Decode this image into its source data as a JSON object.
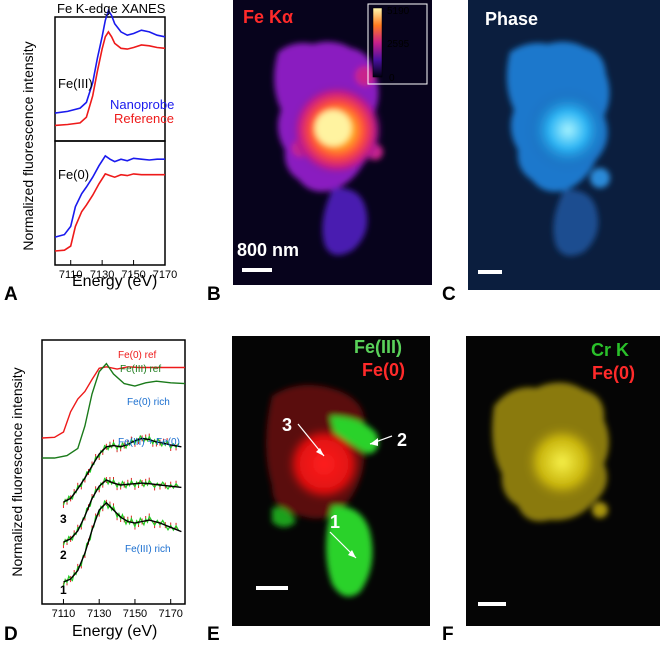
{
  "panels": {
    "a": {
      "letter": "A",
      "title": "Fe K-edge XANES",
      "ylabel": "Normalized fluorescence intensity",
      "xlabel": "Energy (eV)",
      "label_fe3": "Fe(III)",
      "label_fe0": "Fe(0)",
      "legend_nano": "Nanoprobe",
      "legend_ref": "Reference"
    },
    "b": {
      "letter": "B",
      "title": "Fe Kα",
      "scale_text": "800 nm",
      "colorbar_max": "5190",
      "colorbar_mid": "2595",
      "colorbar_min": "0"
    },
    "c": {
      "letter": "C",
      "title": "Phase"
    },
    "d": {
      "letter": "D",
      "ylabel": "Normalized fluorescence intensity",
      "xlabel": "Energy (eV)",
      "lbl_fe0_ref": "Fe(0) ref",
      "lbl_fe3_ref": "Fe(III) ref",
      "lbl_fe0_rich": "Fe(0) rich",
      "lbl_mix": "Fe(III) + Fe(0)",
      "lbl_fe3_rich": "Fe(III) rich",
      "spot1": "1",
      "spot2": "2",
      "spot3": "3"
    },
    "e": {
      "letter": "E",
      "title_green": "Fe(III)",
      "title_red": "Fe(0)",
      "spot1": "1",
      "spot2": "2",
      "spot3": "3"
    },
    "f": {
      "letter": "F",
      "title_green": "Cr K",
      "title_red": "Fe(0)"
    }
  },
  "colors": {
    "nanoprobe": "#1a1aee",
    "reference": "#ee1a1a",
    "fe3_ref": "#1a7a1a",
    "fit": "#000000",
    "data": "#22cc22",
    "err": "#dd2222",
    "label_blue": "#1a6ecf"
  },
  "chart_data": [
    {
      "type": "line",
      "panel": "A",
      "title": "Fe K-edge XANES",
      "xlabel": "Energy (eV)",
      "ylabel": "Normalized fluorescence intensity",
      "xlim": [
        7100,
        7170
      ],
      "xticks": [
        7110,
        7130,
        7150,
        7170
      ],
      "subplots": [
        {
          "name": "Fe(III)",
          "series": [
            {
              "name": "Nanoprobe",
              "x": [
                7100,
                7108,
                7116,
                7120,
                7124,
                7127,
                7130,
                7132,
                7134,
                7136,
                7138,
                7142,
                7146,
                7150,
                7155,
                7160,
                7165,
                7170
              ],
              "y": [
                0.05,
                0.07,
                0.11,
                0.18,
                0.42,
                0.72,
                0.98,
                1.18,
                1.3,
                1.24,
                1.14,
                1.04,
                1.0,
                1.02,
                1.06,
                1.04,
                1.0,
                0.98
              ]
            },
            {
              "name": "Reference",
              "x": [
                7100,
                7108,
                7116,
                7120,
                7124,
                7127,
                7130,
                7132,
                7134,
                7136,
                7138,
                7142,
                7146,
                7150,
                7155,
                7160,
                7165,
                7170
              ],
              "y": [
                0.02,
                0.03,
                0.05,
                0.12,
                0.38,
                0.68,
                0.95,
                1.1,
                1.16,
                1.1,
                1.02,
                0.96,
                0.95,
                0.97,
                1.0,
                0.99,
                0.97,
                0.96
              ]
            }
          ]
        },
        {
          "name": "Fe(0)",
          "series": [
            {
              "name": "Nanoprobe",
              "x": [
                7100,
                7106,
                7110,
                7113,
                7117,
                7120,
                7124,
                7128,
                7132,
                7135,
                7138,
                7142,
                7146,
                7150,
                7155,
                7160,
                7165,
                7170
              ],
              "y": [
                0.05,
                0.08,
                0.18,
                0.42,
                0.58,
                0.66,
                0.78,
                0.92,
                1.04,
                1.0,
                0.97,
                1.0,
                0.98,
                1.01,
                1.0,
                0.99,
                1.0,
                1.0
              ]
            },
            {
              "name": "Reference",
              "x": [
                7100,
                7106,
                7110,
                7113,
                7117,
                7120,
                7124,
                7128,
                7132,
                7135,
                7138,
                7142,
                7146,
                7150,
                7155,
                7160,
                7165,
                7170
              ],
              "y": [
                0.0,
                0.01,
                0.06,
                0.3,
                0.48,
                0.56,
                0.68,
                0.82,
                0.94,
                0.92,
                0.9,
                0.93,
                0.92,
                0.94,
                0.93,
                0.93,
                0.93,
                0.93
              ]
            }
          ]
        }
      ]
    },
    {
      "type": "line",
      "panel": "D",
      "xlabel": "Energy (eV)",
      "ylabel": "Normalized fluorescence intensity",
      "xlim": [
        7098,
        7178
      ],
      "xticks": [
        7110,
        7130,
        7150,
        7170
      ],
      "series": [
        {
          "name": "Fe(0) ref",
          "x": [
            7098,
            7105,
            7110,
            7114,
            7118,
            7122,
            7126,
            7130,
            7134,
            7140,
            7146,
            7152,
            7158,
            7164,
            7170,
            7178
          ],
          "y": [
            0.0,
            0.01,
            0.08,
            0.35,
            0.52,
            0.62,
            0.78,
            0.93,
            0.95,
            0.92,
            0.95,
            0.94,
            0.94,
            0.94,
            0.94,
            0.94
          ]
        },
        {
          "name": "Fe(III) ref",
          "x": [
            7098,
            7105,
            7112,
            7118,
            7122,
            7126,
            7130,
            7134,
            7138,
            7144,
            7150,
            7156,
            7162,
            7170,
            7178
          ],
          "y": [
            0.0,
            0.0,
            0.03,
            0.12,
            0.4,
            0.8,
            1.08,
            1.18,
            1.05,
            0.93,
            0.9,
            0.94,
            0.96,
            0.94,
            0.93
          ]
        },
        {
          "name": "Fe(0) rich",
          "x": [
            7110,
            7114,
            7118,
            7122,
            7126,
            7130,
            7134,
            7138,
            7142,
            7146,
            7150,
            7154,
            7158,
            7162,
            7166,
            7170,
            7176
          ],
          "y": [
            0.0,
            0.06,
            0.22,
            0.4,
            0.6,
            0.8,
            0.92,
            0.94,
            0.92,
            0.96,
            1.02,
            1.06,
            1.04,
            1.0,
            0.98,
            0.95,
            0.92
          ]
        },
        {
          "name": "Fe(III) + Fe(0)",
          "x": [
            7110,
            7114,
            7118,
            7122,
            7126,
            7130,
            7134,
            7138,
            7142,
            7146,
            7150,
            7154,
            7158,
            7164,
            7170,
            7176
          ],
          "y": [
            0.0,
            0.05,
            0.18,
            0.42,
            0.7,
            0.9,
            1.0,
            0.95,
            0.92,
            0.93,
            0.94,
            0.95,
            0.94,
            0.92,
            0.9,
            0.88
          ]
        },
        {
          "name": "Fe(III) rich",
          "x": [
            7110,
            7114,
            7118,
            7122,
            7126,
            7130,
            7134,
            7138,
            7142,
            7146,
            7150,
            7154,
            7158,
            7164,
            7170,
            7176
          ],
          "y": [
            0.0,
            0.04,
            0.16,
            0.4,
            0.72,
            1.0,
            1.1,
            1.0,
            0.9,
            0.84,
            0.82,
            0.84,
            0.86,
            0.82,
            0.76,
            0.7
          ]
        }
      ]
    }
  ]
}
